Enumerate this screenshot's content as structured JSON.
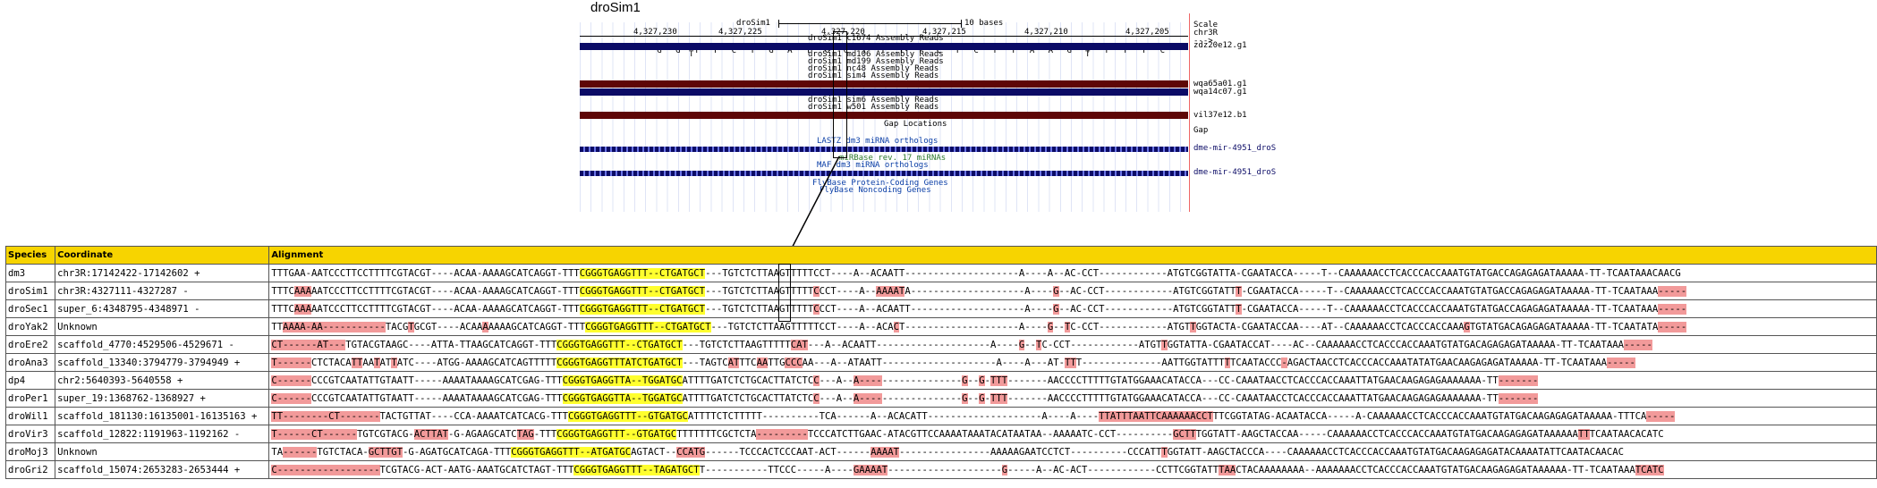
{
  "browser": {
    "title": "droSim1",
    "scale": {
      "label": "10 bases",
      "assembly": "droSim1",
      "chrom": "chr3R",
      "scale_word": "Scale",
      "arrow": "--->"
    },
    "ruler": [
      "4,327,230",
      "4,327,225",
      "4,327,220",
      "4,327,215",
      "4,327,210",
      "4,327,205"
    ],
    "bases": [
      "G",
      "G",
      "T",
      "T",
      "C",
      "T",
      "G",
      "A",
      "T",
      "G",
      "C",
      "T",
      "T",
      "T",
      "T",
      "C",
      "T",
      "C",
      "T",
      "T",
      "A",
      "A",
      "G",
      "T",
      "T",
      "T",
      "T",
      "C"
    ],
    "track_labels": [
      "droSim1 c1674 Assembly Reads",
      "droSim1 md106 Assembly Reads",
      "droSim1 md199 Assembly Reads",
      "droSim1 nc48 Assembly Reads",
      "droSim1 sim4 Assembly Reads",
      "droSim1 sim6 Assembly Reads",
      "droSim1 w501 Assembly Reads",
      "Gap Locations",
      "LASTZ dm3 miRNA orthologs",
      "miRBase rev. 17 miRNAs",
      "MAF dm3 miRNA orthologs",
      "FlyBase Protein-Coding Genes",
      "FlyBase Noncoding Genes"
    ],
    "right_labels": [
      "zdz20e12.g1",
      "wqa65a01.g1",
      "wqa14c07.g1",
      "vil37e12.b1",
      "Gap",
      "dme-mir-4951_droS",
      "dme-mir-4951_droS"
    ],
    "read_letters": {
      "r1": "T",
      "r2": "A",
      "r3": "C"
    }
  },
  "table": {
    "headers": [
      "Species",
      "Coordinate",
      "Alignment"
    ],
    "rows": [
      {
        "species": "dm3",
        "coord": "chr3R:17142422-17142602 +",
        "seq": [
          [
            "",
            "TTTGAA-AATCCCTTCCTTTTCGTACGT----ACAA-AAAAGCATCAGGT-TTT"
          ],
          [
            "y",
            "CGGGTGAGGTTT--CTGATGCT"
          ],
          [
            "",
            "---TGTCTCTTAAGTTTTTCCT----A--ACAATT--------------------A----A--AC-CCT------------ATGTCGGTATTA-CGAATACCA-----T--CAAAAAACCTCACCCACCAAATGTATGACCAGAGAGATAAAAA-TT-TCAATAAACAACG"
          ]
        ]
      },
      {
        "species": "droSim1",
        "coord": "chr3R:4327111-4327287 -",
        "seq": [
          [
            "",
            "TTTC"
          ],
          [
            "r",
            "AAA"
          ],
          [
            "",
            "AATCCCTTCCTTTTCGTACGT----ACAA-AAAAGCATCAGGT-TTT"
          ],
          [
            "y",
            "CGGGTGAGGTTT--CTGATGCT"
          ],
          [
            "",
            "---TGTCTCTTAAGTTTTT"
          ],
          [
            "r",
            "C"
          ],
          [
            "",
            "CCT----A--"
          ],
          [
            "r",
            "AAAAT"
          ],
          [
            "",
            "A--------------------A----"
          ],
          [
            "r",
            "G"
          ],
          [
            "",
            "--AC-CCT------------ATGTCGGTATT"
          ],
          [
            "r",
            "T"
          ],
          [
            "",
            "-CGAATACCA-----T--CAAAAAACCTCACCCACCAAATGTATGACCAGAGAGATAAAAA-TT-TCAATAAA"
          ],
          [
            "r",
            "-----"
          ]
        ]
      },
      {
        "species": "droSec1",
        "coord": "super_6:4348795-4348971 -",
        "seq": [
          [
            "",
            "TTTC"
          ],
          [
            "r",
            "AAA"
          ],
          [
            "",
            "AATCCCTTCCTTTTCGTACGT----ACAA-AAAAGCATCAGGT-TTT"
          ],
          [
            "y",
            "CGGGTGAGGTTT--CTGATGCT"
          ],
          [
            "",
            "---TGTCTCTTAAGTTTTT"
          ],
          [
            "r",
            "C"
          ],
          [
            "",
            "CCT----A--ACAATT--------------------A----"
          ],
          [
            "r",
            "G"
          ],
          [
            "",
            "--AC-CCT------------ATGTCGGTATT"
          ],
          [
            "r",
            "T"
          ],
          [
            "",
            "-CGAATACCA-----T--CAAAAAACCTCACCCACCAAATGTATGACCAGAGAGATAAAAA-TT-TCAATAAA"
          ],
          [
            "r",
            "-----"
          ]
        ]
      },
      {
        "species": "droYak2",
        "coord": "Unknown",
        "seq": [
          [
            "",
            "TT"
          ],
          [
            "r",
            "AAAA-AA-----------"
          ],
          [
            "",
            "TACG"
          ],
          [
            "r",
            "T"
          ],
          [
            "",
            "GCGT----ACAA"
          ],
          [
            "r",
            "A"
          ],
          [
            "",
            "AAAAGCATCAGGT-TTT"
          ],
          [
            "y",
            "CGGGTGAGGTTT--CTGATGCT"
          ],
          [
            "",
            "---TGTCTCTTAAGTTTTTCCT----A--ACA"
          ],
          [
            "r",
            "C"
          ],
          [
            "",
            "T--------------------A----"
          ],
          [
            "r",
            "G"
          ],
          [
            "",
            "--"
          ],
          [
            "r",
            "T"
          ],
          [
            "",
            "C-CCT------------ATGT"
          ],
          [
            "r",
            "T"
          ],
          [
            "",
            "GGTACTA-CGAATACCAA----AT--CAAAAAACCTCACCCACCAAA"
          ],
          [
            "r",
            "G"
          ],
          [
            "",
            "TGTATGACAGAGAGATAAAAA-TT-TCAATATA"
          ],
          [
            "r",
            "-----"
          ]
        ]
      },
      {
        "species": "droEre2",
        "coord": "scaffold_4770:4529506-4529671 -",
        "seq": [
          [
            "r",
            "CT------AT---"
          ],
          [
            "",
            "TGTACGTAAGC----ATTA-TTAAGCATCAGGT-TTT"
          ],
          [
            "y",
            "CGGGTGAGGTTT--CTGATGCT"
          ],
          [
            "",
            "---TGTCTCTTAAGTTTTT"
          ],
          [
            "r",
            "CAT"
          ],
          [
            "",
            "---A--ACAATT--------------------A----"
          ],
          [
            "r",
            "G"
          ],
          [
            "",
            "--"
          ],
          [
            "r",
            "T"
          ],
          [
            "",
            "C-CCT------------ATGT"
          ],
          [
            "r",
            "T"
          ],
          [
            "",
            "GGTATTA-CGAATACCAT----AC--CAAAAAACCTCACCCACCAAATGTATGACAGAGAGATAAAAA-TT-TCAATAAA"
          ],
          [
            "r",
            "-----"
          ]
        ]
      },
      {
        "species": "droAna3",
        "coord": "scaffold_13340:3794779-3794949 +",
        "seq": [
          [
            "r",
            "T------"
          ],
          [
            "",
            "CTCTACA"
          ],
          [
            "r",
            "TT"
          ],
          [
            "",
            "AA"
          ],
          [
            "r",
            "T"
          ],
          [
            "",
            "AT"
          ],
          [
            "r",
            "T"
          ],
          [
            "",
            "ATC----ATGG-AAAAGCATCAGTTTTT"
          ],
          [
            "y",
            "CGGGTGAGGTTTATCTGATGCT"
          ],
          [
            "",
            "---TAGTC"
          ],
          [
            "r",
            "AT"
          ],
          [
            "",
            "TTC"
          ],
          [
            "r",
            "AA"
          ],
          [
            "",
            "TTG"
          ],
          [
            "r",
            "CCC"
          ],
          [
            "",
            "AA---A--ATAATT--------------------A----A---AT-"
          ],
          [
            "r",
            "TT"
          ],
          [
            "",
            "T--------------AATTGGTATTT"
          ],
          [
            "r",
            "T"
          ],
          [
            "",
            "TCAATACCC"
          ],
          [
            "r",
            "-"
          ],
          [
            "",
            "AGACTAACCTCACCCACCAAATATATGAACAAGAGAGATAAAAA-TT-TCAATAAA"
          ],
          [
            "r",
            "-----"
          ]
        ]
      },
      {
        "species": "dp4",
        "coord": "chr2:5640393-5640558 +",
        "seq": [
          [
            "r",
            "C------"
          ],
          [
            "",
            "CCCGTCAATATTGTAATT-----AAAATAAAAGCATCGAG-TTT"
          ],
          [
            "y",
            "CGGGTGAGGTTA--TGGATGC"
          ],
          [
            "",
            "ATTTTGATCTCTGCACTTATCTC"
          ],
          [
            "r",
            "C"
          ],
          [
            "",
            "---A--"
          ],
          [
            "r",
            "A----"
          ],
          [
            "",
            "--------------"
          ],
          [
            "r",
            "G"
          ],
          [
            "",
            "--"
          ],
          [
            "r",
            "G"
          ],
          [
            "",
            "-"
          ],
          [
            "r",
            "TTT"
          ],
          [
            "",
            "-------AACCCCTTTTTGTATGGAAACATACCA---CC-CAAATAACCTCACCCACCAAATTATGAACAAGAGAGAAAAAAA-TT"
          ],
          [
            "r",
            "-------"
          ]
        ]
      },
      {
        "species": "droPer1",
        "coord": "super_19:1368762-1368927 +",
        "seq": [
          [
            "r",
            "C------"
          ],
          [
            "",
            "CCCGTCAATATTGTAATT-----AAAATAAAAGCATCGAG-TTT"
          ],
          [
            "y",
            "CGGGTGAGGTTA--TGGATGC"
          ],
          [
            "",
            "ATTTTGATCTCTGCACTTATCTC"
          ],
          [
            "r",
            "C"
          ],
          [
            "",
            "---A--"
          ],
          [
            "r",
            "A----"
          ],
          [
            "",
            "--------------"
          ],
          [
            "r",
            "G"
          ],
          [
            "",
            "--"
          ],
          [
            "r",
            "G"
          ],
          [
            "",
            "-"
          ],
          [
            "r",
            "TTT"
          ],
          [
            "",
            "-------AACCCCTTTTTGTATGGAAACATACCA---CC-CAAATAACCTCACCCACCAAATTATGAACAAGAGAGAAAAAAA-TT"
          ],
          [
            "r",
            "-------"
          ]
        ]
      },
      {
        "species": "droWil1",
        "coord": "scaffold_181130:16135001-16135163 +",
        "seq": [
          [
            "r",
            "TT--------CT-------"
          ],
          [
            "",
            "TACTGTTAT----CCA-AAAATCATCACG-TTT"
          ],
          [
            "y",
            "CGGGTGAGGTTT--GTGATGC"
          ],
          [
            "",
            "ATTTTCTCTTTTT----------TCA------A--ACACATT--------------------A----A----"
          ],
          [
            "r",
            "TTATTTAATTCAAAAAACCT"
          ],
          [
            "",
            "TTCGGTATAG-ACAATACCA-----A-CAAAAAACCTCACCCACCAAATGTATGACAAGAGAGATAAAAA-TTTCA"
          ],
          [
            "r",
            "-----"
          ]
        ]
      },
      {
        "species": "droVir3",
        "coord": "scaffold_12822:1191963-1192162 -",
        "seq": [
          [
            "r",
            "T------CT------"
          ],
          [
            "",
            "TGTCGTACG-"
          ],
          [
            "r",
            "ACTTAT"
          ],
          [
            "",
            "-G-AGAAGCATC"
          ],
          [
            "r",
            "TAG"
          ],
          [
            "",
            "-TTT"
          ],
          [
            "y",
            "CGGGTGAGGTTT--GTGATGC"
          ],
          [
            "",
            "TTTTTTTCGCTCTA"
          ],
          [
            "r",
            "---------"
          ],
          [
            "",
            "TCCCATCTTGAAC-ATACGTTCCAAAATAAATACATAATAA--AAAAATC-CCT----------"
          ],
          [
            "r",
            "GCTT"
          ],
          [
            "",
            "TGGTATT-AAGCTACCAA-----CAAAAAACCTCACCCACCAAATGTATGACAAGAGAGATAAAAAA"
          ],
          [
            "r",
            "TT"
          ],
          [
            "",
            "TCAATAACACATC"
          ]
        ]
      },
      {
        "species": "droMoj3",
        "coord": "Unknown",
        "seq": [
          [
            "",
            "TA"
          ],
          [
            "r",
            "------"
          ],
          [
            "",
            "TGTCTACA-"
          ],
          [
            "r",
            "GCTTGT"
          ],
          [
            "",
            "-G-AGATGCATCAGA-TTT"
          ],
          [
            "y",
            "CGGGTGAGGTTT--ATGATGC"
          ],
          [
            "",
            "AGTACT--"
          ],
          [
            "r",
            "CCATG"
          ],
          [
            "",
            "------TCCCACTCCCAAT-ACT------"
          ],
          [
            "r",
            "AAAAT"
          ],
          [
            "",
            "----------------AAAAAGAATCCTCT----------CCCATT"
          ],
          [
            "r",
            "T"
          ],
          [
            "",
            "GGTATT-AAGCTACCCA----CAAAAAACCTCACCCACCAAATGTATGACAAGAGAGATACAAAATATTCAATACAACAC"
          ]
        ]
      },
      {
        "species": "droGri2",
        "coord": "scaffold_15074:2653283-2653444 +",
        "seq": [
          [
            "r",
            "C------------------"
          ],
          [
            "",
            "TCGTACG-ACT-AATG-AAATGCATCTAGT-TTT"
          ],
          [
            "y",
            "CGGGTGAGGTTT--TAGATGCT"
          ],
          [
            "",
            "T-----------TTCCC-----A----"
          ],
          [
            "r",
            "GAAAAT"
          ],
          [
            "",
            "--------------------"
          ],
          [
            "r",
            "G"
          ],
          [
            "",
            "-----A--AC-ACT------------CCTTCGGTATT"
          ],
          [
            "r",
            "TAA"
          ],
          [
            "",
            "CTACAAAAAAAA--AAAAAAACCTCACCCACCAAATGTATGACAAGAGAGATAAAAAA-TT-TCAATAAA"
          ],
          [
            "r",
            "TCATC"
          ]
        ]
      }
    ]
  }
}
